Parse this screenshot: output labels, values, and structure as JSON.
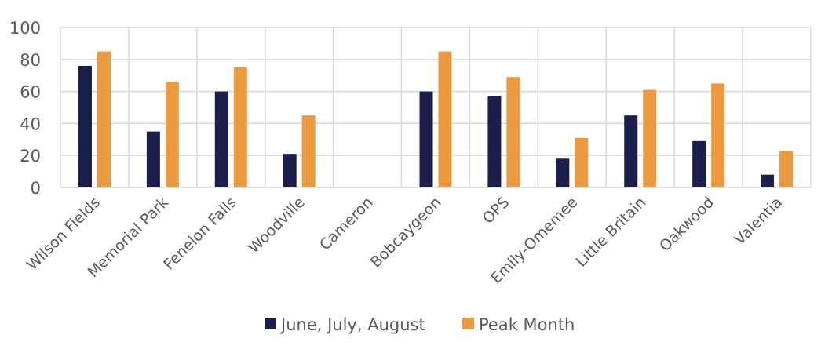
{
  "chart_data": {
    "type": "bar",
    "title": "",
    "xlabel": "",
    "ylabel": "",
    "ylim": [
      0,
      100
    ],
    "yticks": [
      0,
      20,
      40,
      60,
      80,
      100
    ],
    "grid": true,
    "legend_position": "bottom",
    "categories": [
      "Wilson Fields",
      "Memorial Park",
      "Fenelon Falls",
      "Woodville",
      "Cameron",
      "Bobcaygeon",
      "OPS",
      "Emily-Omemee",
      "Little Britain",
      "Oakwood",
      "Valentia"
    ],
    "series": [
      {
        "name": "June, July, August",
        "color": "#1c1f4c",
        "values": [
          76,
          35,
          60,
          21,
          0,
          60,
          57,
          18,
          45,
          29,
          8
        ]
      },
      {
        "name": "Peak Month",
        "color": "#ec9a3f",
        "values": [
          85,
          66,
          75,
          45,
          0,
          85,
          69,
          31,
          61,
          65,
          23
        ]
      }
    ]
  }
}
